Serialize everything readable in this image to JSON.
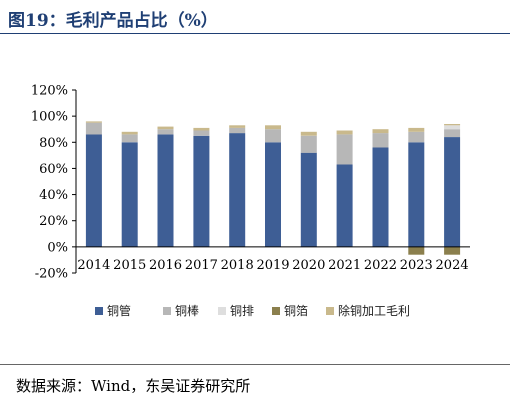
{
  "figure": {
    "title": "图19：毛利产品占比（%）",
    "source": "数据来源：Wind，东吴证券研究所"
  },
  "colors": {
    "accent": "#1f3f74",
    "series": [
      "#3e5e95",
      "#b7b7b7",
      "#dedede",
      "#8b7f4d",
      "#c9b98c"
    ]
  },
  "chart_data": {
    "type": "bar",
    "stacked": true,
    "categories": [
      "2014",
      "2015",
      "2016",
      "2017",
      "2018",
      "2019",
      "2020",
      "2021",
      "2022",
      "2023",
      "2024"
    ],
    "series": [
      {
        "name": "铜管",
        "values": [
          86,
          80,
          86,
          85,
          87,
          80,
          72,
          63,
          76,
          80,
          84
        ]
      },
      {
        "name": "铜棒",
        "values": [
          9,
          6,
          4,
          4,
          4,
          10,
          13,
          23,
          11,
          8,
          6
        ]
      },
      {
        "name": "铜排",
        "values": [
          0,
          0,
          0,
          0,
          0,
          0,
          0,
          0,
          0,
          0,
          3
        ]
      },
      {
        "name": "铜箔",
        "values": [
          0,
          0,
          0,
          0,
          0,
          0,
          0,
          0,
          0,
          -6,
          -6
        ]
      },
      {
        "name": "除铜加工毛利",
        "values": [
          1,
          2,
          2,
          2,
          2,
          3,
          3,
          3,
          3,
          3,
          1
        ]
      }
    ],
    "ylim": [
      -20,
      120
    ],
    "yticks": [
      "120%",
      "100%",
      "80%",
      "60%",
      "40%",
      "20%",
      "0%",
      "-20%"
    ],
    "grid": false,
    "legend_position": "bottom",
    "xlabel": "",
    "ylabel": ""
  }
}
